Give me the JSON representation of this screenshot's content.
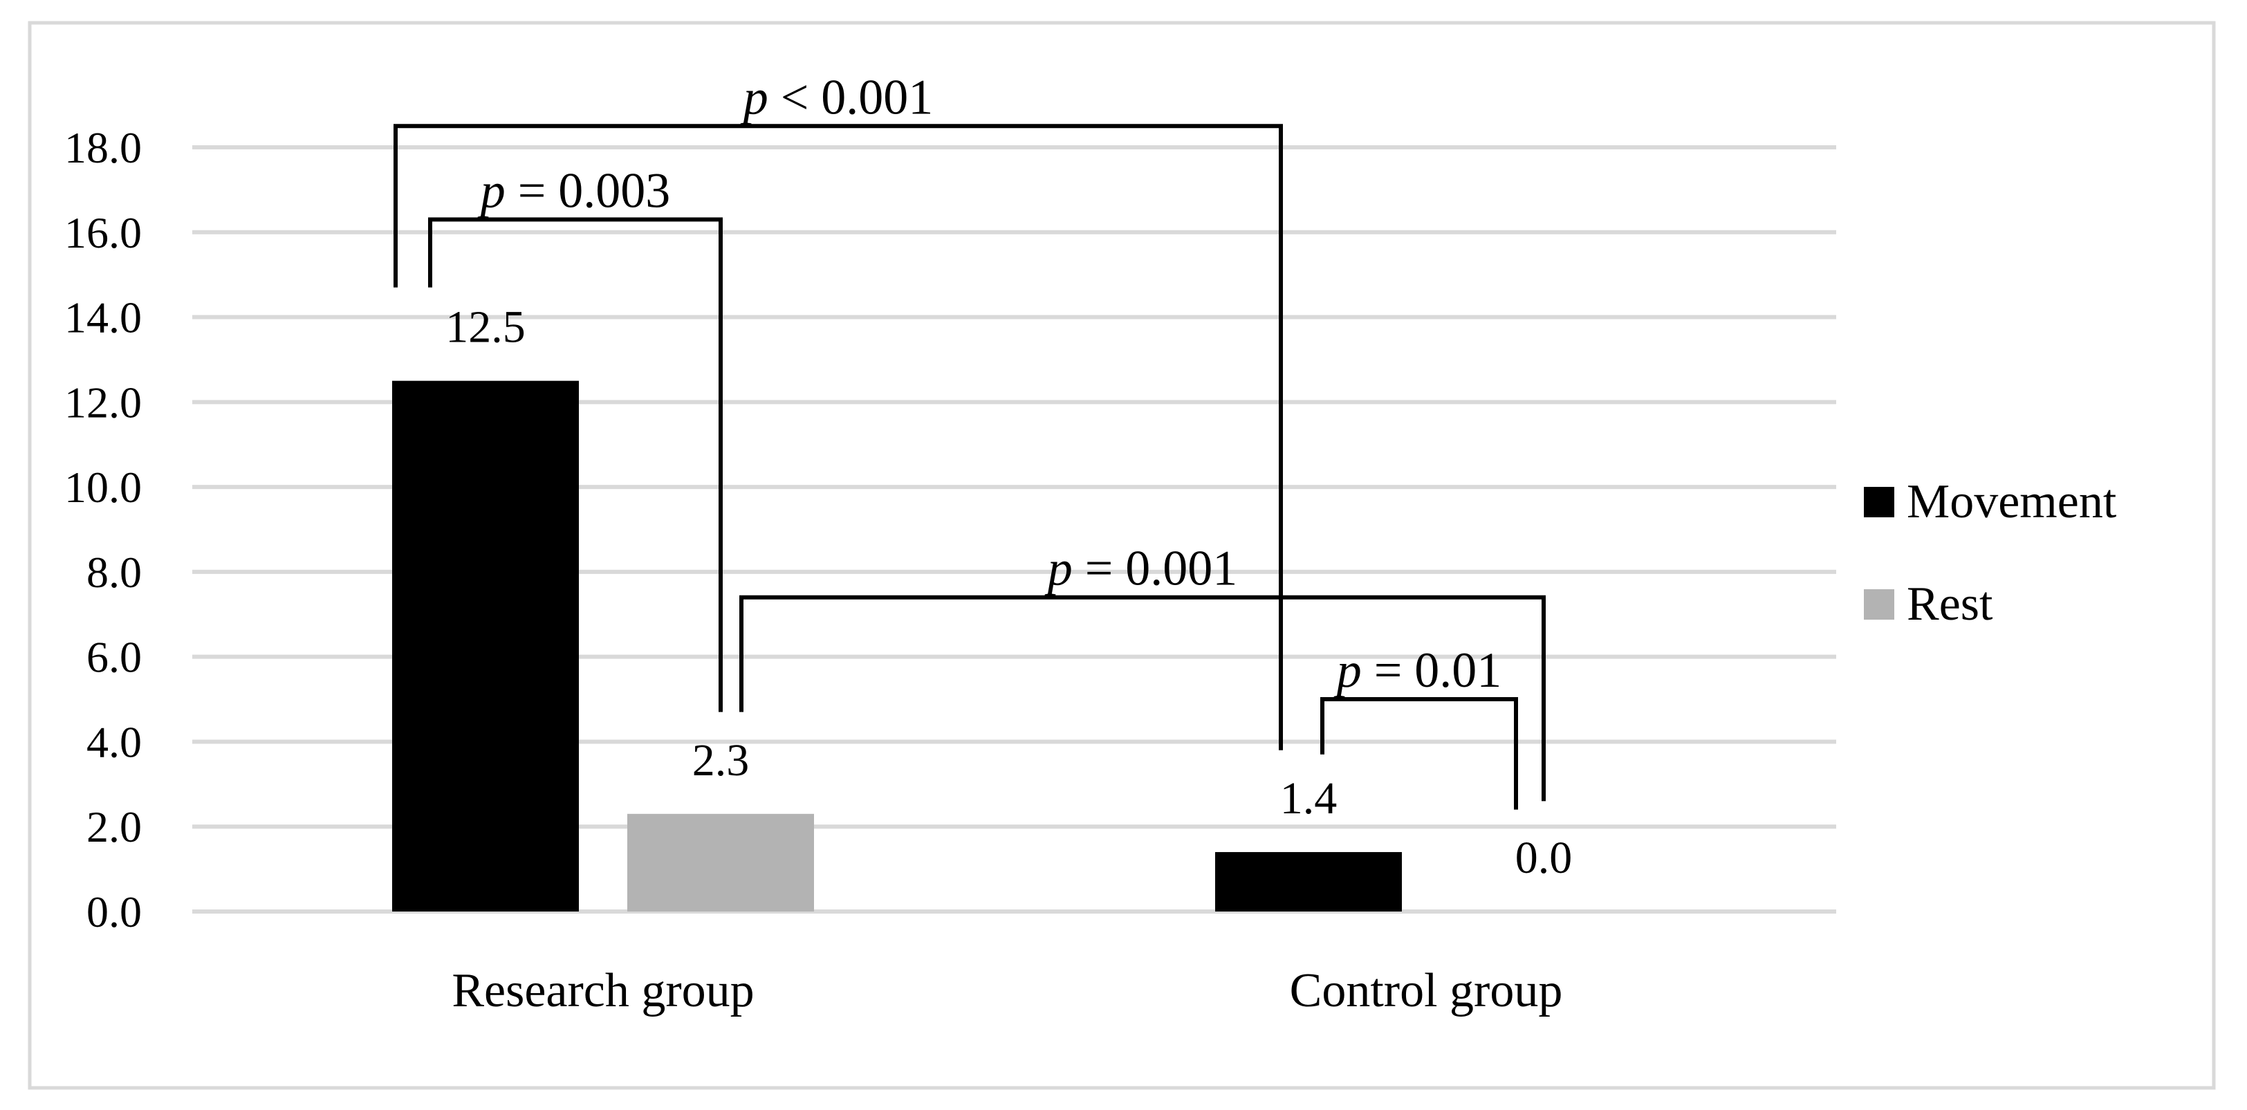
{
  "chart_data": {
    "type": "bar",
    "categories": [
      "Research group",
      "Control group"
    ],
    "series": [
      {
        "name": "Movement",
        "values": [
          12.5,
          1.4
        ],
        "labels": [
          "12.5",
          "1.4"
        ],
        "color": "#000000"
      },
      {
        "name": "Rest",
        "values": [
          2.3,
          0.0
        ],
        "labels": [
          "2.3",
          "0.0"
        ],
        "color": "#b3b3b3"
      }
    ],
    "ylim": [
      0,
      18
    ],
    "yticks": [
      0,
      2,
      4,
      6,
      8,
      10,
      12,
      14,
      16,
      18
    ],
    "ytick_labels": [
      "0.0",
      "2.0",
      "4.0",
      "6.0",
      "8.0",
      "10.0",
      "12.0",
      "14.0",
      "16.0",
      "18.0"
    ],
    "grid": true,
    "legend": "right",
    "title": "",
    "xlabel": "",
    "ylabel": "",
    "annotations": [
      {
        "p_symbol": "p",
        "text": " < 0.001",
        "from": [
          0,
          0
        ],
        "to": [
          1,
          0
        ],
        "y": 18.5
      },
      {
        "p_symbol": "p",
        "text": " = 0.003",
        "from": [
          0,
          0
        ],
        "to": [
          0,
          1
        ],
        "y": 16.3
      },
      {
        "p_symbol": "p",
        "text": " = 0.001",
        "from": [
          0,
          1
        ],
        "to": [
          1,
          1
        ],
        "y": 7.4
      },
      {
        "p_symbol": "p",
        "text": " = 0.01",
        "from": [
          1,
          0
        ],
        "to": [
          1,
          1
        ],
        "y": 5.0
      }
    ]
  }
}
